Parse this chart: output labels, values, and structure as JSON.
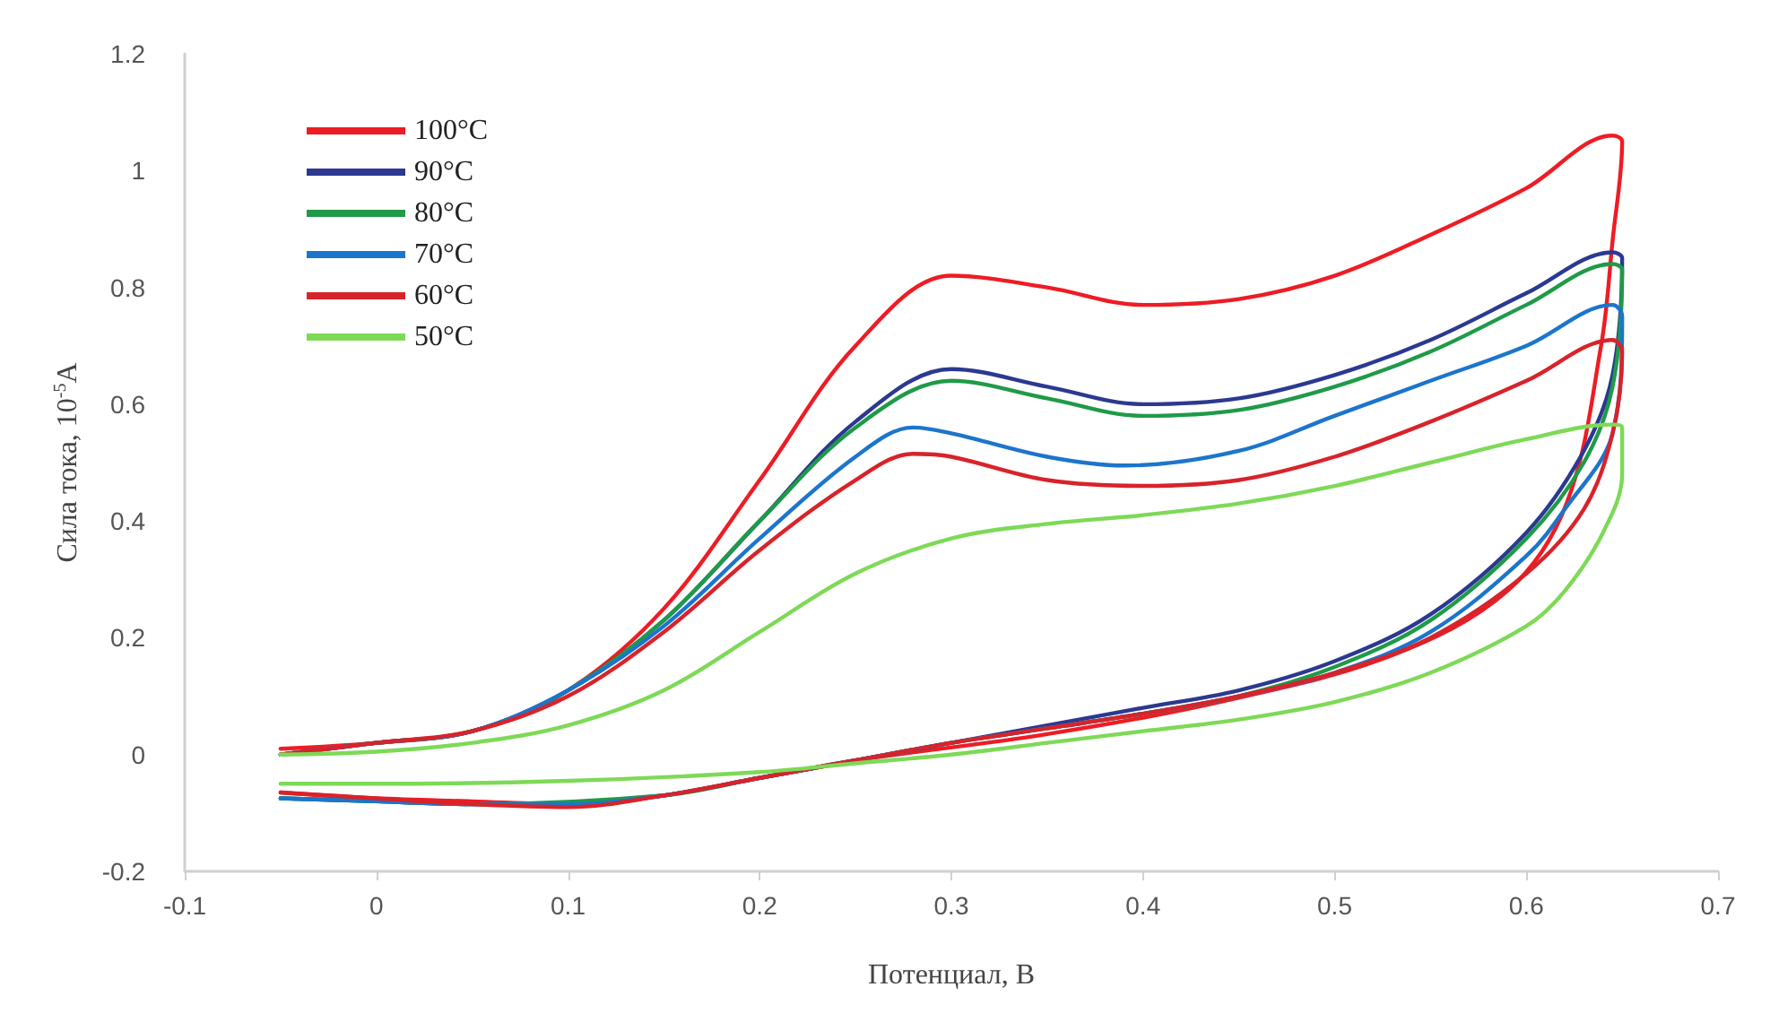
{
  "chart_data": {
    "type": "line",
    "xlabel": "Потенциал, В",
    "ylabel": "Сила тока, 10$^{-5}$A",
    "xlim": [
      -0.1,
      0.7
    ],
    "xticks": [
      -0.1,
      0,
      0.1,
      0.2,
      0.3,
      0.4,
      0.5,
      0.6,
      0.7
    ],
    "ylim": [
      -0.2,
      1.2
    ],
    "yticks": [
      -0.2,
      0,
      0.2,
      0.4,
      0.6,
      0.8,
      1,
      1.2
    ],
    "grid": false,
    "legend": "top left",
    "marker": "none",
    "line_style": "solid",
    "series": [
      {
        "name": "100°C",
        "color": "#ee1c24",
        "x": [
          -0.05,
          0,
          0.05,
          0.1,
          0.15,
          0.2,
          0.25,
          0.3,
          0.35,
          0.4,
          0.45,
          0.5,
          0.55,
          0.6,
          0.645,
          0.65,
          0.645,
          0.639,
          0.621,
          0.59,
          0.53,
          0.44,
          0.35,
          0.25,
          0.2,
          0.15,
          0.1,
          0.05,
          0,
          -0.05
        ],
        "values": [
          0.01,
          0.02,
          0.04,
          0.11,
          0.25,
          0.47,
          0.7,
          0.82,
          0.8,
          0.77,
          0.78,
          0.82,
          0.89,
          0.97,
          1.06,
          1.05,
          0.88,
          0.7,
          0.43,
          0.28,
          0.17,
          0.09,
          0.035,
          -0.01,
          -0.04,
          -0.07,
          -0.085,
          -0.08,
          -0.075,
          -0.065
        ]
      },
      {
        "name": "90°C",
        "color": "#2b3990",
        "x": [
          -0.05,
          0,
          0.05,
          0.1,
          0.15,
          0.2,
          0.25,
          0.3,
          0.35,
          0.4,
          0.45,
          0.5,
          0.55,
          0.6,
          0.645,
          0.65,
          0.645,
          0.63,
          0.6,
          0.55,
          0.5,
          0.45,
          0.4,
          0.35,
          0.3,
          0.25,
          0.2,
          0.15,
          0.1,
          0.05,
          0,
          -0.05
        ],
        "values": [
          0,
          0.02,
          0.04,
          0.11,
          0.23,
          0.4,
          0.57,
          0.66,
          0.63,
          0.6,
          0.61,
          0.65,
          0.71,
          0.79,
          0.86,
          0.85,
          0.65,
          0.52,
          0.38,
          0.24,
          0.16,
          0.11,
          0.08,
          0.05,
          0.02,
          -0.01,
          -0.04,
          -0.07,
          -0.085,
          -0.085,
          -0.08,
          -0.075
        ]
      },
      {
        "name": "80°C",
        "color": "#1f9a48",
        "x": [
          -0.05,
          0,
          0.05,
          0.1,
          0.15,
          0.2,
          0.25,
          0.3,
          0.35,
          0.4,
          0.45,
          0.5,
          0.55,
          0.6,
          0.645,
          0.65,
          0.645,
          0.63,
          0.6,
          0.55,
          0.5,
          0.45,
          0.4,
          0.35,
          0.3,
          0.25,
          0.2,
          0.15,
          0.1,
          0.05,
          0,
          -0.05
        ],
        "values": [
          0,
          0.02,
          0.04,
          0.11,
          0.23,
          0.4,
          0.56,
          0.64,
          0.61,
          0.58,
          0.59,
          0.63,
          0.69,
          0.77,
          0.84,
          0.83,
          0.63,
          0.5,
          0.37,
          0.23,
          0.15,
          0.1,
          0.07,
          0.045,
          0.02,
          -0.01,
          -0.04,
          -0.07,
          null,
          -0.085,
          -0.08,
          -0.075
        ]
      },
      {
        "name": "70°C",
        "color": "#1c75cc",
        "x": [
          -0.05,
          0,
          0.05,
          0.1,
          0.15,
          0.2,
          0.25,
          0.28,
          0.3,
          0.35,
          0.39,
          0.45,
          0.5,
          0.55,
          0.6,
          0.645,
          0.65,
          0.645,
          0.62,
          0.6,
          0.55,
          0.5,
          0.45,
          0.4,
          0.35,
          0.3,
          0.25,
          0.2,
          0.15,
          0.1,
          0.05,
          0,
          -0.05
        ],
        "values": [
          0,
          0.02,
          0.04,
          0.11,
          0.22,
          0.37,
          0.51,
          0.56,
          0.55,
          0.51,
          0.495,
          0.52,
          0.58,
          0.64,
          0.7,
          0.77,
          0.75,
          0.55,
          0.42,
          0.34,
          0.21,
          0.14,
          0.1,
          0.07,
          0.045,
          0.02,
          -0.01,
          -0.04,
          -0.07,
          -0.085,
          -0.085,
          -0.08,
          -0.075
        ]
      },
      {
        "name": "60°C",
        "color": "#d8232a",
        "x": [
          -0.05,
          0,
          0.05,
          0.1,
          0.15,
          0.2,
          0.25,
          0.28,
          0.3,
          0.35,
          0.4,
          0.45,
          0.5,
          0.55,
          0.6,
          0.645,
          0.65,
          0.645,
          0.63,
          0.6,
          0.55,
          0.5,
          0.45,
          0.4,
          0.35,
          0.3,
          0.25,
          0.2,
          0.15,
          0.1,
          0.05,
          0,
          -0.05
        ],
        "values": [
          0,
          0.02,
          0.04,
          0.1,
          0.21,
          0.35,
          0.47,
          0.515,
          0.51,
          0.47,
          0.46,
          0.47,
          0.51,
          0.57,
          0.64,
          0.71,
          0.69,
          0.55,
          0.42,
          0.31,
          0.2,
          0.14,
          0.1,
          0.07,
          0.045,
          0.02,
          -0.01,
          -0.04,
          -0.07,
          -0.09,
          -0.085,
          -0.075,
          -0.065
        ]
      },
      {
        "name": "50°C",
        "color": "#7ed957",
        "x": [
          -0.05,
          0,
          0.05,
          0.1,
          0.15,
          0.2,
          0.25,
          0.3,
          0.35,
          0.4,
          0.45,
          0.5,
          0.55,
          0.6,
          0.645,
          0.65,
          0.65,
          0.64,
          0.62,
          0.6,
          0.55,
          0.5,
          0.45,
          0.4,
          0.35,
          0.3,
          0.25,
          0.2,
          0.1,
          0,
          -0.05
        ],
        "values": [
          0,
          0.005,
          0.02,
          0.05,
          0.11,
          0.21,
          0.31,
          0.37,
          0.395,
          0.41,
          0.43,
          0.46,
          0.5,
          0.54,
          0.565,
          0.56,
          0.48,
          0.38,
          0.28,
          0.22,
          0.14,
          0.09,
          0.06,
          0.04,
          0.02,
          0,
          -0.015,
          -0.03,
          -0.045,
          -0.05,
          -0.05
        ]
      }
    ]
  }
}
